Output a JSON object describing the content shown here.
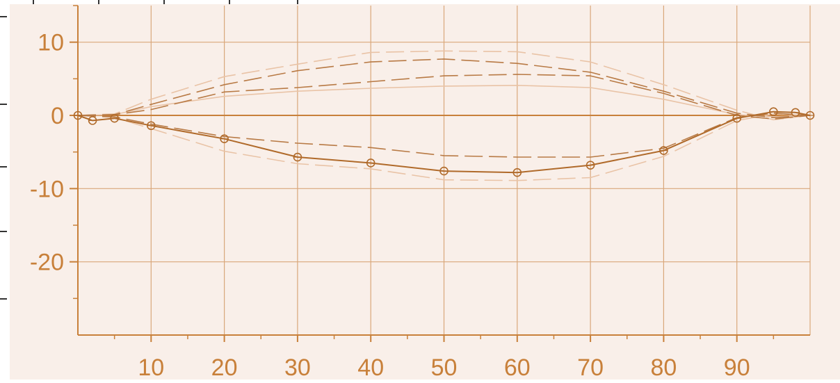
{
  "colors": {
    "background": "#ffffff",
    "plot_background": "#f9efe9",
    "axis": "#c8803a",
    "grid": "#d9a77a",
    "text": "#c8803a",
    "measured": "#b06a2a",
    "tolerance_dark": "#b87a45",
    "tolerance_light": "#e9c3a6",
    "outer_tick": "#333333"
  },
  "chart_data": {
    "type": "line",
    "title": "",
    "xlabel": "",
    "ylabel": "",
    "xlim": [
      0,
      100
    ],
    "ylim": [
      -30,
      15
    ],
    "grid": true,
    "legend": "none",
    "x_tick_labels": [
      "10",
      "20",
      "30",
      "40",
      "50",
      "60",
      "70",
      "80",
      "90"
    ],
    "y_tick_labels": [
      "10",
      "0",
      "-10",
      "-20"
    ],
    "x_ticks": [
      10,
      20,
      30,
      40,
      50,
      60,
      70,
      80,
      90
    ],
    "y_ticks": [
      10,
      0,
      -10,
      -20
    ],
    "x_minor_ticks": [
      5,
      15,
      25,
      35,
      45,
      55,
      65,
      75,
      85,
      95
    ],
    "y_minor_ticks": [
      15,
      5,
      -5,
      -15,
      -25
    ],
    "series": [
      {
        "style": "solid-markers",
        "color": "measured",
        "x": [
          0,
          2,
          5,
          10,
          20,
          30,
          40,
          50,
          60,
          70,
          80,
          90,
          95,
          98,
          100
        ],
        "y": [
          0,
          -0.7,
          -0.4,
          -1.4,
          -3.2,
          -5.7,
          -6.5,
          -7.6,
          -7.8,
          -6.8,
          -4.8,
          -0.4,
          0.5,
          0.4,
          0
        ]
      },
      {
        "style": "dashed",
        "color": "tolerance_dark",
        "x": [
          0,
          5,
          10,
          20,
          30,
          40,
          50,
          60,
          70,
          80,
          90,
          95,
          100
        ],
        "y": [
          0,
          0.1,
          1.5,
          4.2,
          6.1,
          7.3,
          7.7,
          7.1,
          5.9,
          3.3,
          0.3,
          -0.3,
          0
        ]
      },
      {
        "style": "dashed",
        "color": "tolerance_dark",
        "x": [
          0,
          5,
          10,
          20,
          30,
          40,
          50,
          60,
          70,
          80,
          90,
          95,
          100
        ],
        "y": [
          0,
          0.1,
          0.8,
          3.2,
          3.8,
          4.6,
          5.4,
          5.6,
          5.4,
          3.0,
          0.0,
          -0.5,
          0
        ]
      },
      {
        "style": "dashed",
        "color": "tolerance_dark",
        "x": [
          0,
          5,
          10,
          20,
          30,
          40,
          50,
          60,
          70,
          80,
          90,
          95,
          100
        ],
        "y": [
          0,
          -0.2,
          -1.2,
          -2.9,
          -3.8,
          -4.4,
          -5.5,
          -5.7,
          -5.7,
          -4.5,
          -0.3,
          0.3,
          0
        ]
      },
      {
        "style": "dashed",
        "color": "tolerance_light",
        "x": [
          0,
          5,
          10,
          20,
          30,
          40,
          50,
          60,
          70,
          80,
          90,
          95,
          100
        ],
        "y": [
          0,
          0.2,
          2.2,
          5.3,
          7.0,
          8.6,
          8.8,
          8.7,
          7.3,
          4.2,
          0.7,
          -0.6,
          0
        ]
      },
      {
        "style": "dashed",
        "color": "tolerance_light",
        "x": [
          0,
          5,
          10,
          20,
          30,
          40,
          50,
          60,
          70,
          80,
          90,
          95,
          100
        ],
        "y": [
          0,
          -0.3,
          -1.8,
          -4.9,
          -6.6,
          -7.3,
          -8.8,
          -8.9,
          -8.5,
          -5.6,
          -0.7,
          0.2,
          0
        ]
      },
      {
        "style": "solid",
        "color": "tolerance_light",
        "x": [
          0,
          5,
          10,
          20,
          30,
          40,
          50,
          60,
          70,
          80,
          90,
          95,
          100
        ],
        "y": [
          0,
          0.1,
          1.2,
          2.6,
          3.3,
          3.7,
          4.0,
          4.1,
          3.8,
          2.2,
          0.1,
          -0.2,
          0
        ]
      }
    ]
  }
}
